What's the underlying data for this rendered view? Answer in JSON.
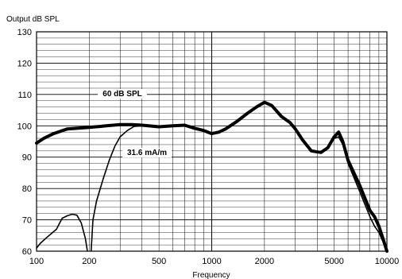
{
  "chart_data": {
    "type": "line",
    "title": "",
    "ylabel": "Output dB SPL",
    "xlabel": "Frequency",
    "x_scale": "log",
    "xlim": [
      100,
      10000
    ],
    "ylim": [
      60,
      130
    ],
    "x_ticks": [
      100,
      200,
      500,
      1000,
      2000,
      5000,
      10000
    ],
    "x_tick_labels": [
      "100",
      "200",
      "500",
      "1000",
      "2000",
      "5000",
      "10000"
    ],
    "y_ticks": [
      60,
      70,
      80,
      90,
      100,
      110,
      120,
      130
    ],
    "y_tick_labels": [
      "60",
      "70",
      "80",
      "90",
      "100",
      "110",
      "120",
      "130"
    ],
    "grid": true,
    "legend": "none",
    "annotations": [
      {
        "text": "60 dB SPL",
        "series": 0
      },
      {
        "text": "31.6 mA/m",
        "series": 1
      }
    ],
    "series": [
      {
        "name": "",
        "line": "thick",
        "points": [
          [
            100,
            94.5
          ],
          [
            110,
            96
          ],
          [
            125,
            97.5
          ],
          [
            150,
            99
          ],
          [
            200,
            99.5
          ],
          [
            250,
            100
          ],
          [
            300,
            100.4
          ],
          [
            350,
            100.4
          ],
          [
            400,
            100.2
          ],
          [
            500,
            99.7
          ],
          [
            600,
            100
          ],
          [
            700,
            100.2
          ],
          [
            800,
            99.2
          ],
          [
            900,
            98.5
          ],
          [
            1000,
            97.5
          ],
          [
            1100,
            98
          ],
          [
            1200,
            99
          ],
          [
            1400,
            101.5
          ],
          [
            1600,
            104
          ],
          [
            1800,
            106
          ],
          [
            2000,
            107.5
          ],
          [
            2200,
            106.5
          ],
          [
            2500,
            103
          ],
          [
            2800,
            101
          ],
          [
            3000,
            99
          ],
          [
            3300,
            95.5
          ],
          [
            3700,
            92
          ],
          [
            4200,
            91.5
          ],
          [
            4600,
            93
          ],
          [
            5000,
            96.5
          ],
          [
            5300,
            98
          ],
          [
            5600,
            95
          ],
          [
            6000,
            89
          ],
          [
            7000,
            81
          ],
          [
            8000,
            73
          ],
          [
            8500,
            71
          ],
          [
            9000,
            68
          ],
          [
            9500,
            64
          ],
          [
            10000,
            60
          ]
        ]
      },
      {
        "name": "",
        "line": "thin",
        "points": [
          [
            100,
            61
          ],
          [
            105,
            62.5
          ],
          [
            115,
            64.5
          ],
          [
            130,
            67
          ],
          [
            140,
            70.5
          ],
          [
            150,
            71.3
          ],
          [
            160,
            71.8
          ],
          [
            170,
            71.5
          ],
          [
            180,
            69
          ],
          [
            190,
            64
          ],
          [
            195,
            60
          ]
        ]
      },
      {
        "name": "",
        "line": "thin",
        "points": [
          [
            205,
            60
          ],
          [
            210,
            70
          ],
          [
            220,
            76
          ],
          [
            240,
            83
          ],
          [
            260,
            89
          ],
          [
            280,
            93.5
          ],
          [
            300,
            96.5
          ],
          [
            330,
            98.5
          ],
          [
            360,
            99.8
          ],
          [
            400,
            100
          ],
          [
            500,
            99.5
          ],
          [
            700,
            100
          ],
          [
            800,
            99.2
          ],
          [
            1000,
            97.5
          ],
          [
            1200,
            99
          ],
          [
            1400,
            101.5
          ],
          [
            1600,
            104
          ],
          [
            1800,
            106
          ],
          [
            2000,
            107.5
          ],
          [
            2200,
            106.5
          ],
          [
            2500,
            103
          ],
          [
            2800,
            101
          ],
          [
            3000,
            99
          ],
          [
            3300,
            95.5
          ],
          [
            3700,
            92
          ],
          [
            4200,
            91.5
          ],
          [
            4600,
            93
          ],
          [
            5000,
            96
          ],
          [
            5300,
            96.5
          ],
          [
            5600,
            94
          ],
          [
            6000,
            88
          ],
          [
            7000,
            79
          ],
          [
            8000,
            71
          ],
          [
            8500,
            68
          ],
          [
            9000,
            66
          ],
          [
            9500,
            63
          ],
          [
            10000,
            60
          ]
        ]
      }
    ]
  }
}
